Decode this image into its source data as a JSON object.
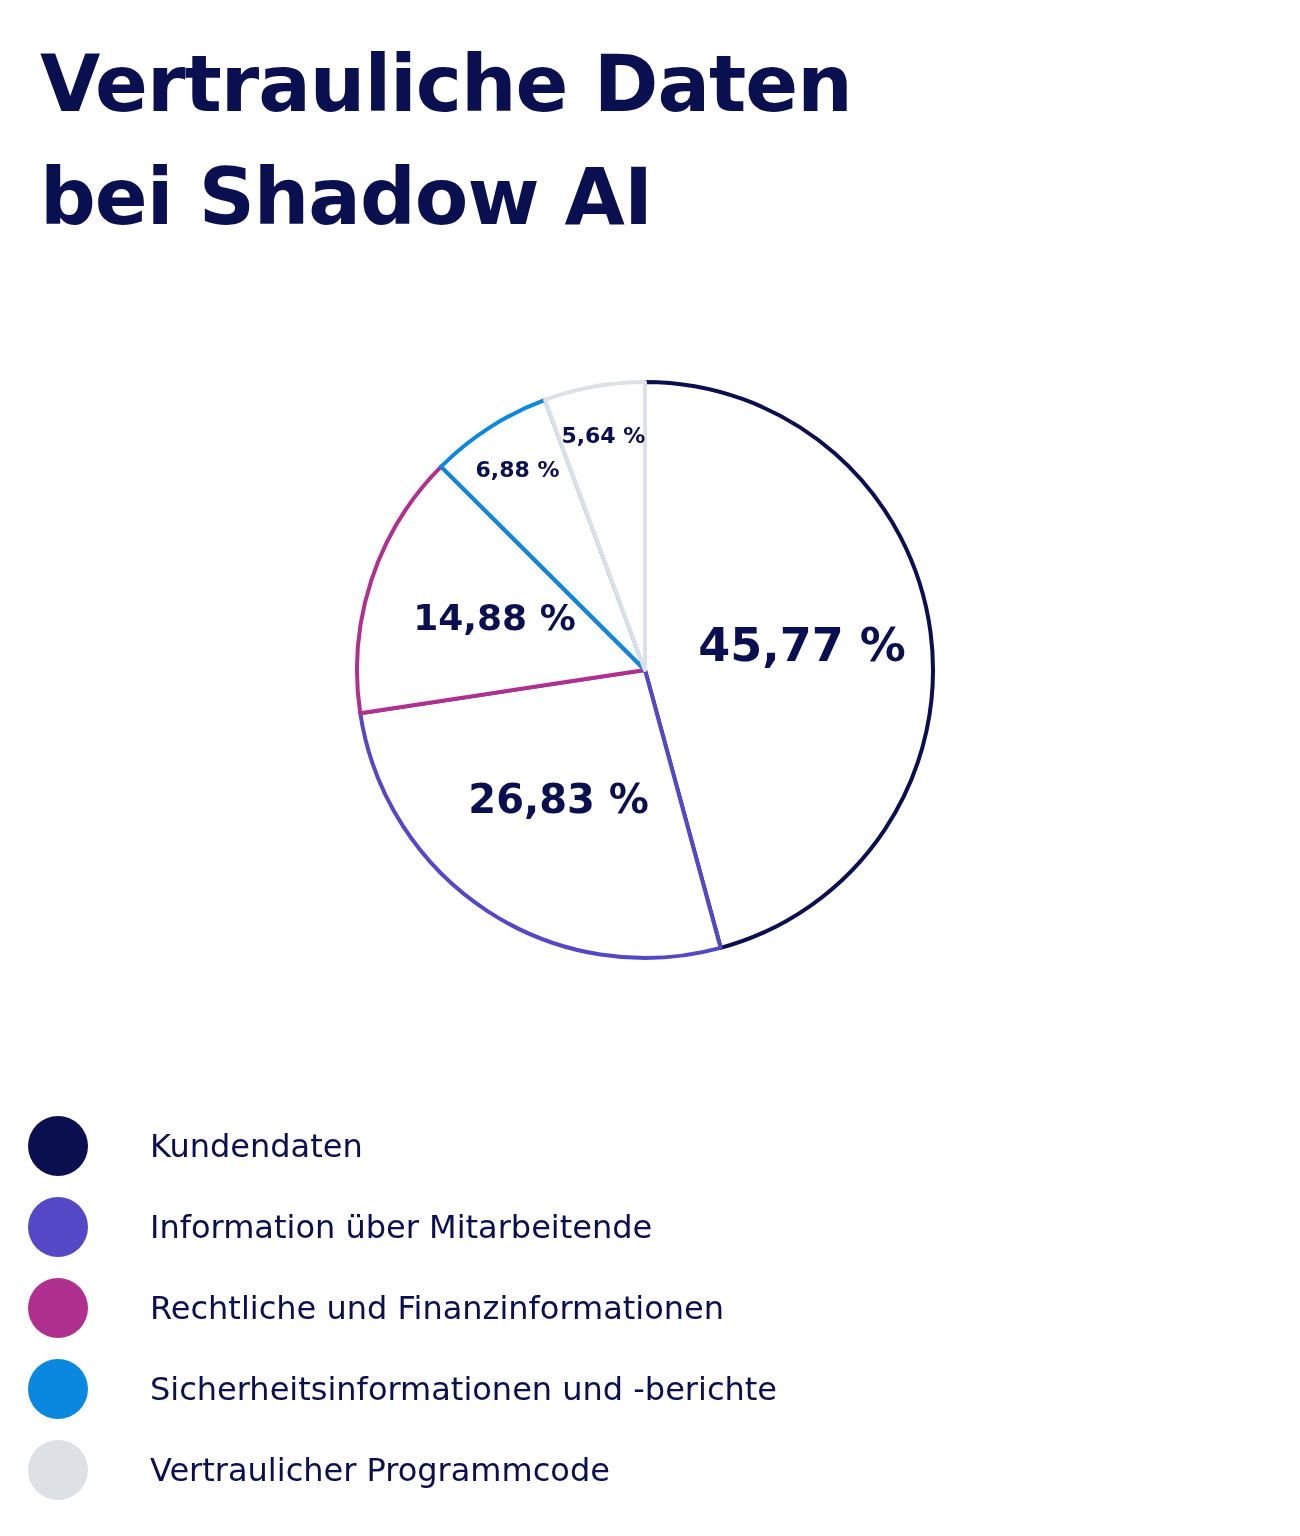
{
  "chart_data": {
    "type": "pie",
    "title": "Vertrauliche Daten bei Shadow AI",
    "categories": [
      "Kundendaten",
      "Information über Mitarbeitende",
      "Rechtliche und Finanzinformationen",
      "Sicherheitsinformationen und -berichte",
      "Vertraulicher Programmcode"
    ],
    "values": [
      45.77,
      26.83,
      14.88,
      6.88,
      5.64
    ],
    "value_labels": [
      "45,77 %",
      "26,83 %",
      "14,88 %",
      "6,88 %",
      "5,64 %"
    ],
    "colors": [
      "#0a0f50",
      "#5548c6",
      "#b0308f",
      "#0a88e0",
      "#dde1e6"
    ],
    "legend": "bottom left"
  }
}
